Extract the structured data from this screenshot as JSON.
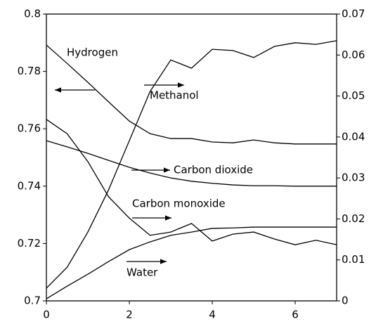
{
  "chart_data": {
    "type": "line",
    "x": [
      0,
      0.5,
      1,
      1.5,
      2,
      2.5,
      3,
      3.5,
      4,
      4.5,
      5,
      5.5,
      6,
      6.5,
      7
    ],
    "series": [
      {
        "name": "Hydrogen",
        "color": "#000000",
        "axis": "y",
        "values": [
          0.7892,
          0.7828,
          0.7762,
          0.7694,
          0.7627,
          0.7583,
          0.7566,
          0.7566,
          0.7554,
          0.7551,
          0.7561,
          0.7551,
          0.7547,
          0.7547,
          0.7547
        ]
      },
      {
        "name": "Methanol",
        "color": "#000000",
        "axis": "y2",
        "values": [
          0.0031,
          0.0082,
          0.0168,
          0.0271,
          0.0391,
          0.0511,
          0.0588,
          0.0568,
          0.0614,
          0.0611,
          0.0594,
          0.0621,
          0.063,
          0.0626,
          0.0635
        ]
      },
      {
        "name": "Carbon dioxide",
        "color": "#000000",
        "axis": "y2",
        "values": [
          0.0391,
          0.0376,
          0.036,
          0.0343,
          0.0326,
          0.0312,
          0.03,
          0.0292,
          0.0287,
          0.0283,
          0.0281,
          0.0281,
          0.028,
          0.028,
          0.028
        ]
      },
      {
        "name": "Carbon monoxide",
        "color": "#000000",
        "axis": "y2",
        "values": [
          0.0443,
          0.0408,
          0.034,
          0.0254,
          0.0202,
          0.016,
          0.0168,
          0.0189,
          0.0146,
          0.0163,
          0.0168,
          0.0151,
          0.0137,
          0.0148,
          0.0137
        ]
      },
      {
        "name": "Water",
        "color": "#000000",
        "axis": "y2",
        "values": [
          0.0005,
          0.0036,
          0.0065,
          0.0096,
          0.0125,
          0.0144,
          0.016,
          0.0168,
          0.0177,
          0.0178,
          0.018,
          0.018,
          0.018,
          0.018,
          0.018
        ]
      }
    ],
    "xlim": [
      0,
      7
    ],
    "xticks": [
      0,
      2,
      4,
      6
    ],
    "ylim": [
      0.7,
      0.8
    ],
    "yticks": [
      0.7,
      0.72,
      0.74,
      0.76,
      0.78,
      0.8
    ],
    "y2lim": [
      0,
      0.07
    ],
    "y2ticks": [
      0,
      0.01,
      0.02,
      0.03,
      0.04,
      0.05,
      0.06,
      0.07
    ],
    "grid": false
  }
}
